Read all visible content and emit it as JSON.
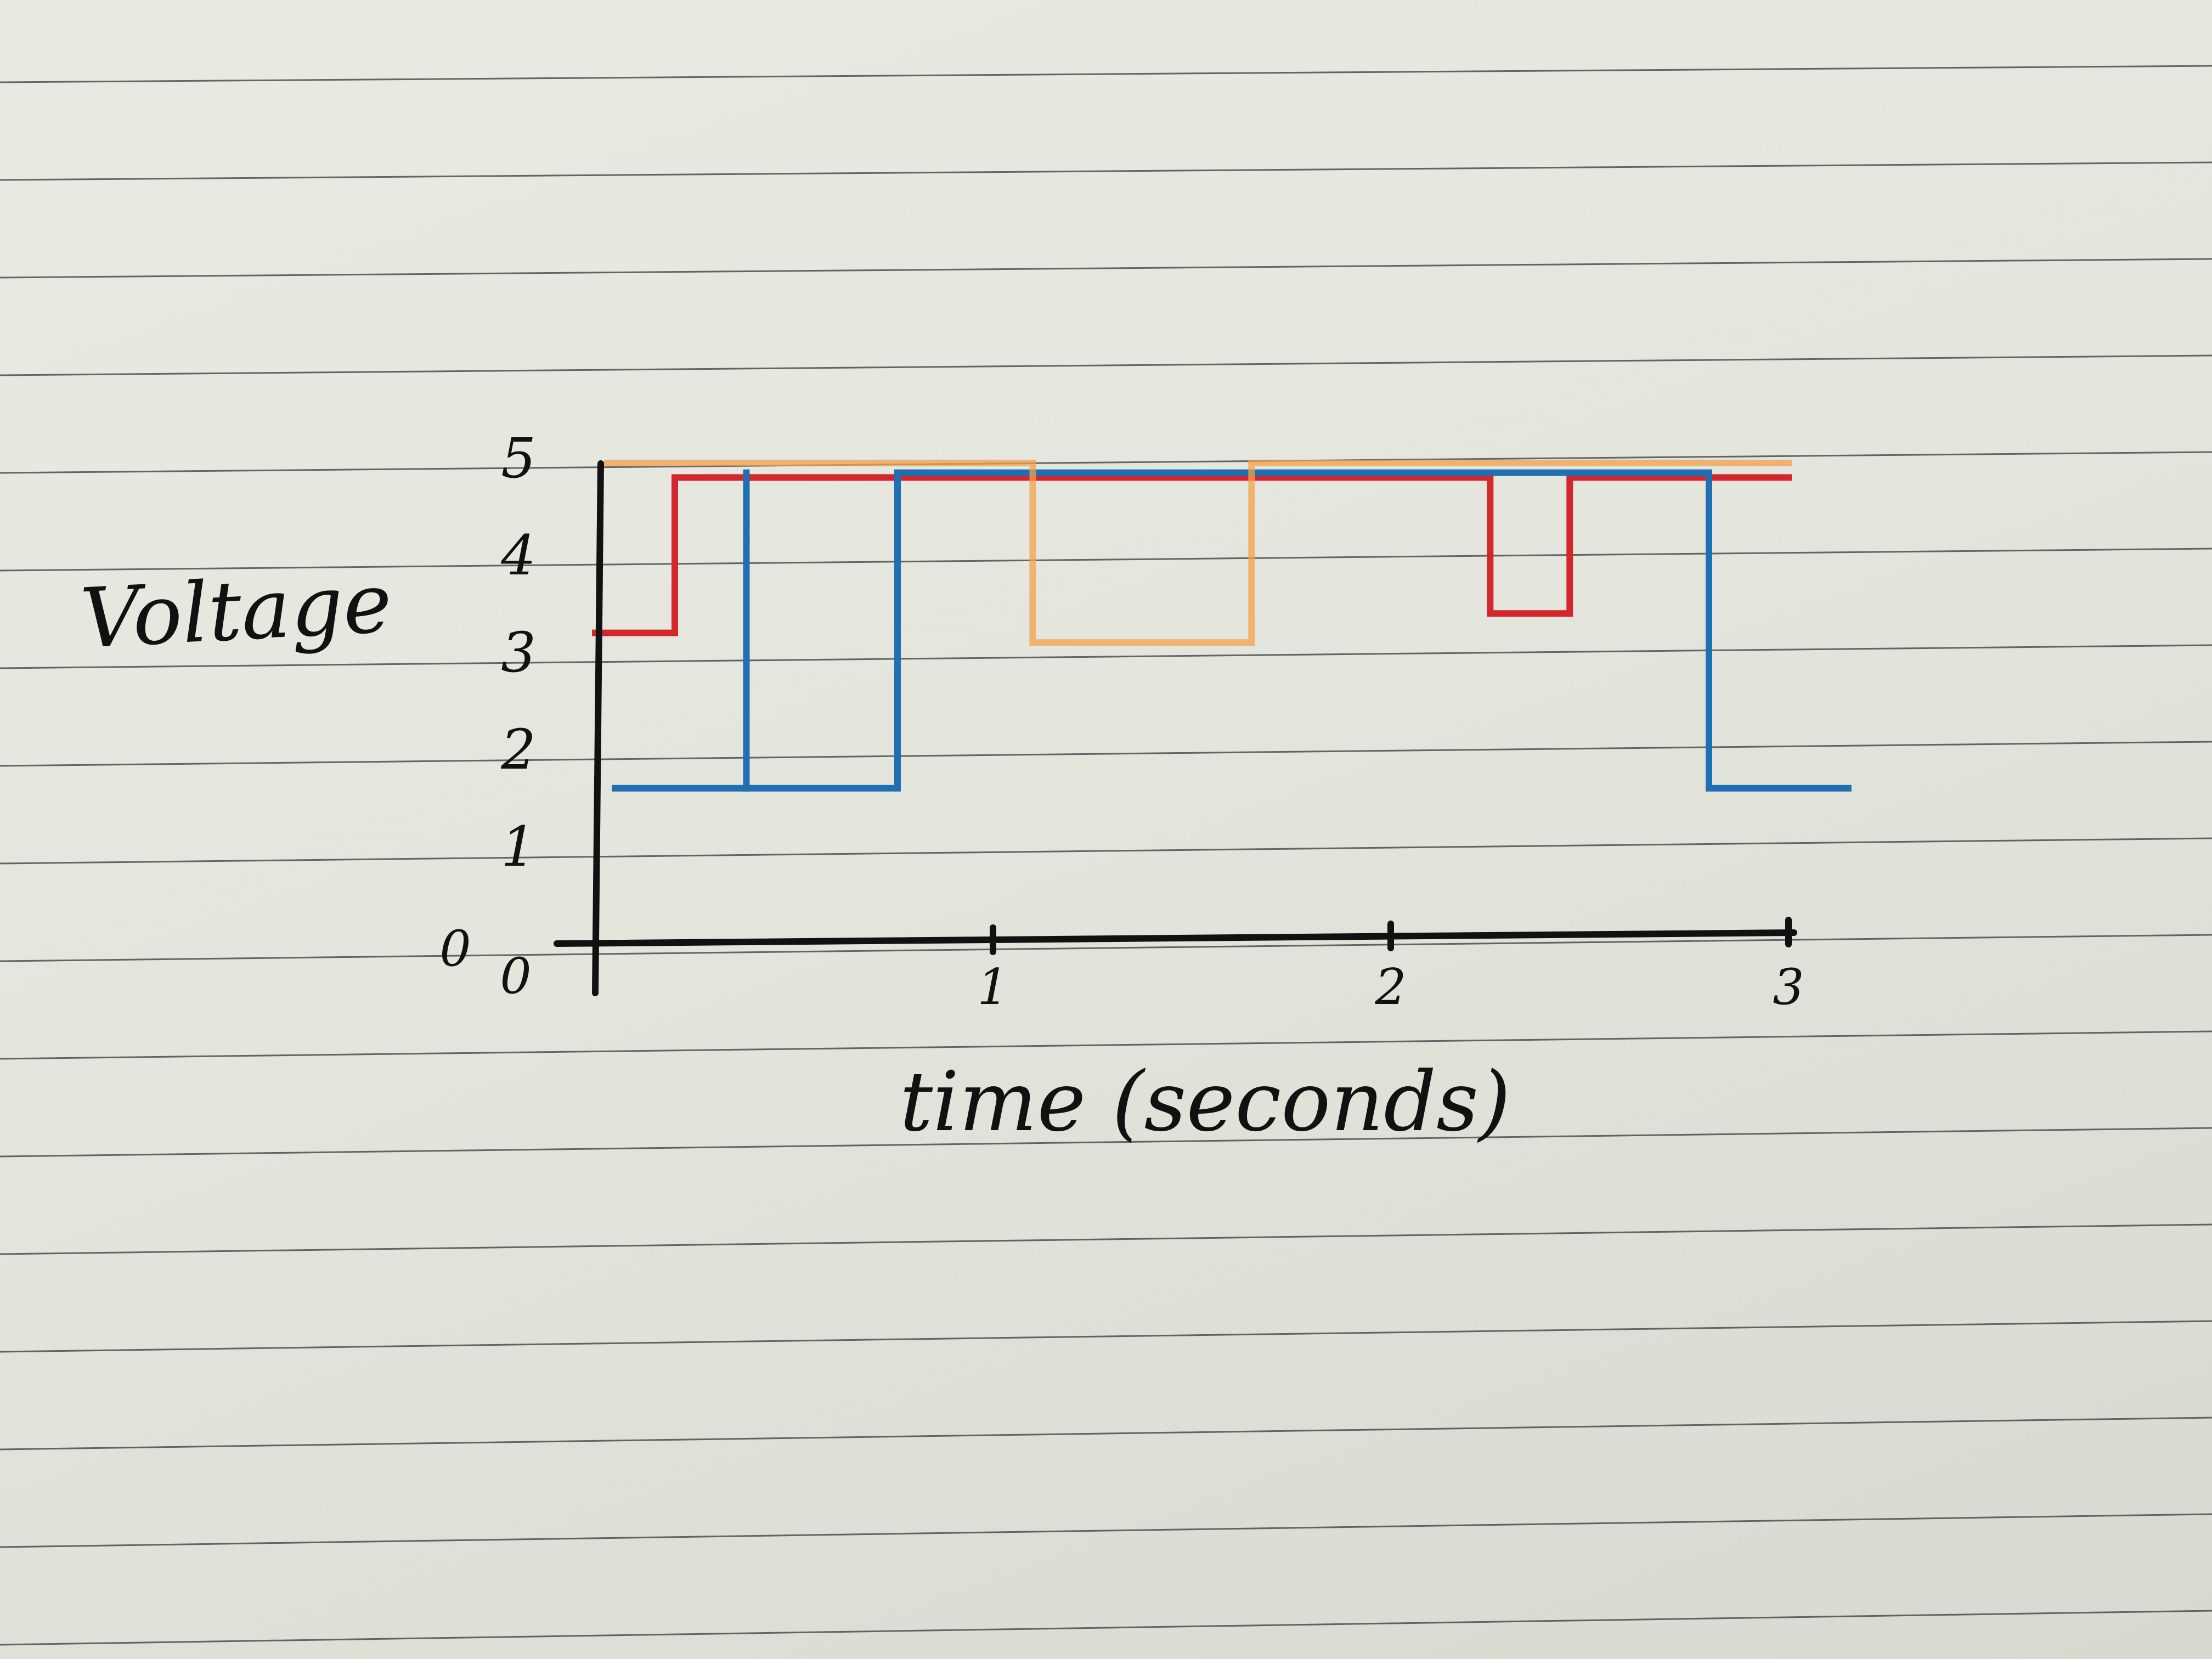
{
  "chart_data": {
    "type": "line",
    "step": true,
    "handwritten": true,
    "title": "",
    "xlabel": "time (seconds)",
    "ylabel": "Voltage",
    "x_origin_label": "0",
    "y_origin_label": "0",
    "xlim": [
      0,
      3
    ],
    "ylim": [
      0,
      5
    ],
    "x_ticks": [
      {
        "value": 1,
        "label": "1"
      },
      {
        "value": 2,
        "label": "2"
      },
      {
        "value": 3,
        "label": "3"
      }
    ],
    "y_ticks": [
      {
        "value": 1,
        "label": "1"
      },
      {
        "value": 2,
        "label": "2"
      },
      {
        "value": 3,
        "label": "3"
      },
      {
        "value": 4,
        "label": "4"
      },
      {
        "value": 5,
        "label": "5"
      }
    ],
    "grid": false,
    "legend": "none",
    "series": [
      {
        "color": "#d4262d",
        "x": [
          0,
          0.2,
          0.2,
          2.25,
          2.25,
          2.45,
          2.45,
          3
        ],
        "y": [
          3.2,
          3.2,
          4.8,
          4.8,
          3.4,
          3.4,
          4.8,
          4.8
        ]
      },
      {
        "color": "#1f6fb2",
        "x": [
          0.05,
          0.38,
          0.38,
          0.76,
          0.76,
          2.8,
          2.8,
          3.15
        ],
        "y": [
          1.6,
          1.6,
          1.6,
          1.6,
          4.85,
          4.85,
          1.6,
          1.6
        ]
      },
      {
        "color": "#1f6fb2",
        "x": [
          0.38,
          0.38
        ],
        "y": [
          1.6,
          4.85
        ]
      },
      {
        "color": "#f3a24a",
        "x": [
          0.03,
          1.1,
          1.1,
          1.65,
          1.65,
          3
        ],
        "y": [
          4.95,
          4.95,
          3.1,
          3.1,
          4.95,
          4.95
        ]
      }
    ]
  }
}
